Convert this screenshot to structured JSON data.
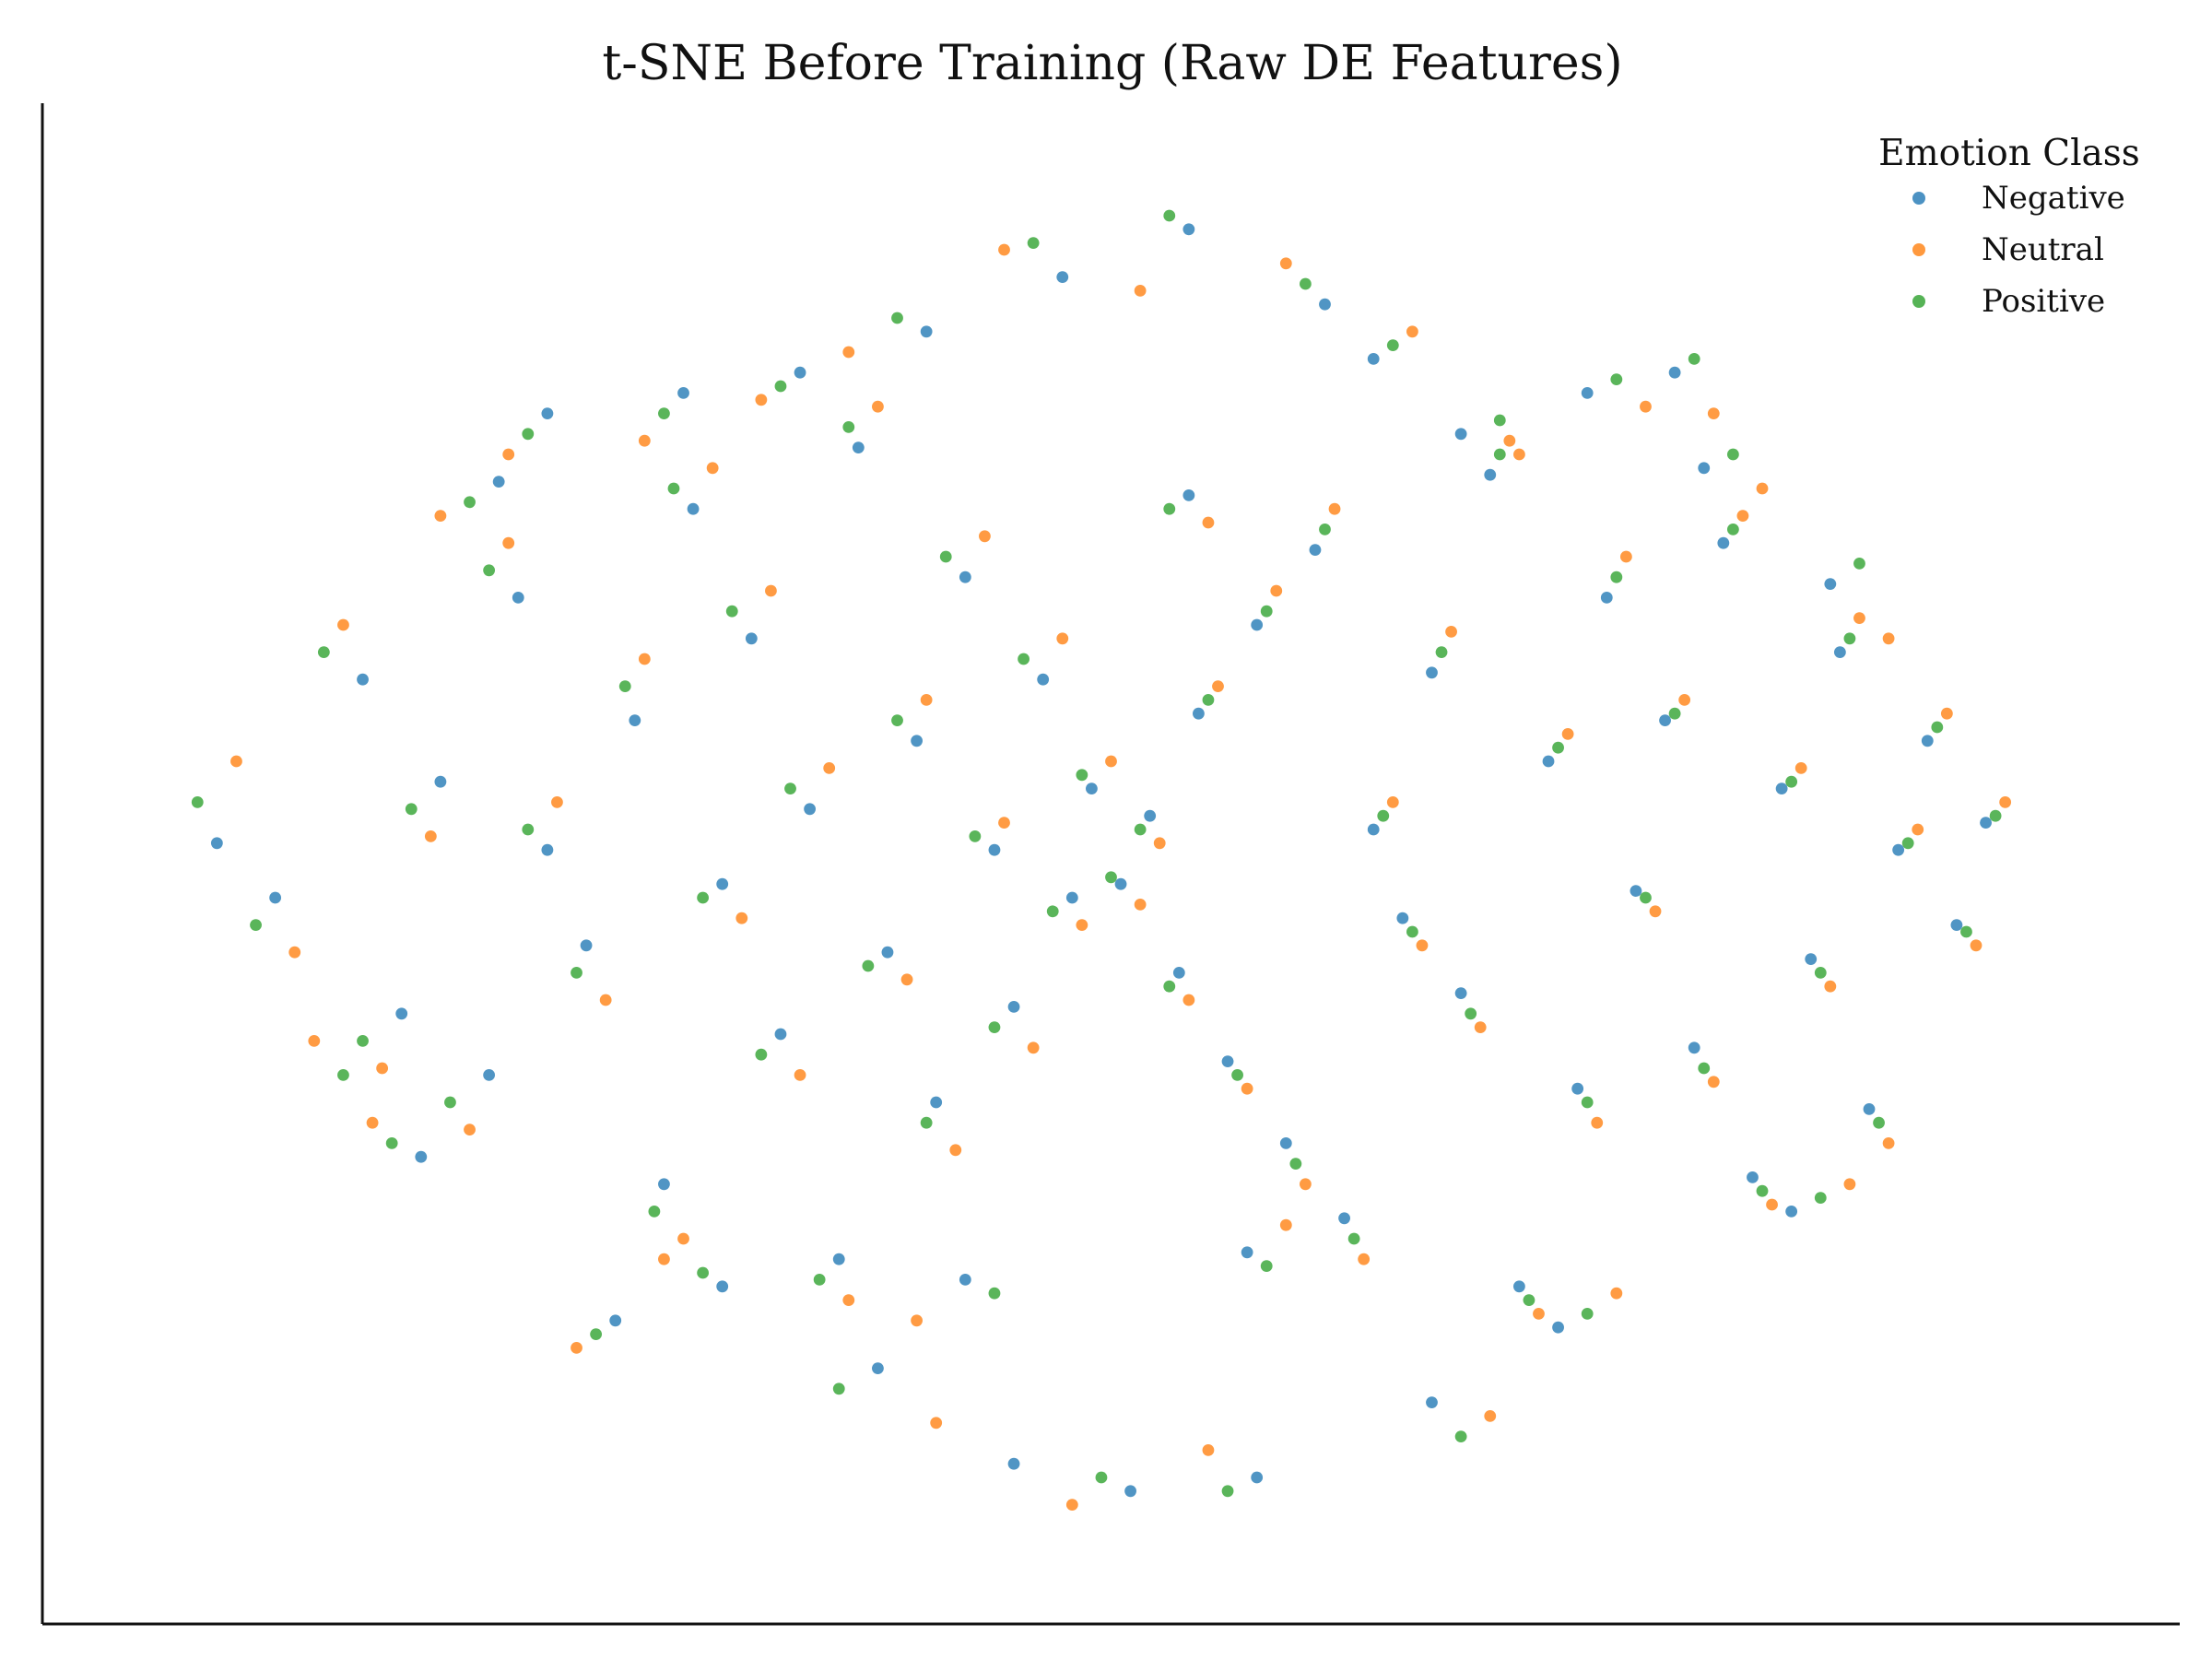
{
  "chart_data": {
    "type": "scatter",
    "title": "t-SNE Before Training (Raw DE Features)",
    "xlabel": "",
    "ylabel": "",
    "grid": false,
    "axes": {
      "left_spine": true,
      "bottom_spine": true,
      "ticks_visible": false
    },
    "xlim": [
      -1,
      1
    ],
    "ylim": [
      -1,
      1
    ],
    "legend": {
      "title": "Emotion Class",
      "position": "top-right",
      "entries": [
        "Negative",
        "Neutral",
        "Positive"
      ]
    },
    "series": [
      {
        "name": "Negative",
        "color": "#1f77b4",
        "points": [
          [
            -0.92,
            0.03
          ],
          [
            -0.86,
            -0.05
          ],
          [
            -0.77,
            0.27
          ],
          [
            -0.73,
            -0.22
          ],
          [
            -0.69,
            0.12
          ],
          [
            -0.64,
            -0.31
          ],
          [
            -0.61,
            0.39
          ],
          [
            -0.58,
            0.02
          ],
          [
            -0.54,
            -0.12
          ],
          [
            -0.49,
            0.21
          ],
          [
            -0.46,
            -0.47
          ],
          [
            -0.43,
            0.52
          ],
          [
            -0.4,
            -0.03
          ],
          [
            -0.37,
            0.33
          ],
          [
            -0.34,
            -0.25
          ],
          [
            -0.31,
            0.08
          ],
          [
            -0.28,
            -0.58
          ],
          [
            -0.26,
            0.61
          ],
          [
            -0.23,
            -0.13
          ],
          [
            -0.2,
            0.18
          ],
          [
            -0.18,
            -0.35
          ],
          [
            -0.15,
            0.42
          ],
          [
            -0.12,
            0.02
          ],
          [
            -0.1,
            -0.21
          ],
          [
            -0.07,
            0.27
          ],
          [
            -0.04,
            -0.05
          ],
          [
            -0.02,
            0.11
          ],
          [
            0.01,
            -0.03
          ],
          [
            0.04,
            0.07
          ],
          [
            0.07,
            -0.16
          ],
          [
            0.09,
            0.22
          ],
          [
            0.12,
            -0.29
          ],
          [
            0.15,
            0.35
          ],
          [
            0.18,
            -0.41
          ],
          [
            0.21,
            0.46
          ],
          [
            0.24,
            -0.52
          ],
          [
            0.27,
            0.05
          ],
          [
            0.3,
            -0.08
          ],
          [
            0.33,
            0.28
          ],
          [
            0.36,
            -0.19
          ],
          [
            0.39,
            0.57
          ],
          [
            0.42,
            -0.62
          ],
          [
            0.45,
            0.15
          ],
          [
            0.48,
            -0.33
          ],
          [
            0.51,
            0.39
          ],
          [
            0.54,
            -0.04
          ],
          [
            0.57,
            0.21
          ],
          [
            0.6,
            -0.27
          ],
          [
            0.63,
            0.47
          ],
          [
            0.66,
            -0.46
          ],
          [
            0.69,
            0.11
          ],
          [
            0.72,
            -0.14
          ],
          [
            0.75,
            0.31
          ],
          [
            0.78,
            -0.36
          ],
          [
            0.81,
            0.02
          ],
          [
            0.84,
            0.18
          ],
          [
            0.87,
            -0.09
          ],
          [
            0.9,
            0.06
          ],
          [
            -0.05,
            0.86
          ],
          [
            0.08,
            0.93
          ],
          [
            0.22,
            0.82
          ],
          [
            -0.19,
            0.78
          ],
          [
            0.33,
            -0.79
          ],
          [
            -0.24,
            -0.74
          ],
          [
            0.49,
            0.69
          ],
          [
            -0.51,
            -0.67
          ],
          [
            0.61,
            0.58
          ],
          [
            -0.63,
            0.56
          ],
          [
            0.7,
            -0.51
          ],
          [
            -0.71,
            -0.43
          ],
          [
            0.02,
            -0.92
          ],
          [
            -0.1,
            -0.88
          ],
          [
            0.15,
            -0.9
          ],
          [
            -0.32,
            0.72
          ],
          [
            0.27,
            0.74
          ],
          [
            0.58,
            0.72
          ],
          [
            -0.58,
            0.66
          ],
          [
            0.08,
            0.54
          ],
          [
            0.14,
            -0.57
          ],
          [
            -0.15,
            -0.61
          ],
          [
            0.36,
            0.63
          ],
          [
            -0.4,
            -0.62
          ],
          [
            0.46,
            -0.68
          ],
          [
            -0.44,
            0.69
          ],
          [
            0.74,
            0.41
          ]
        ]
      },
      {
        "name": "Neutral",
        "color": "#ff7f0e",
        "points": [
          [
            -0.9,
            0.15
          ],
          [
            -0.84,
            -0.13
          ],
          [
            -0.79,
            0.35
          ],
          [
            -0.75,
            -0.3
          ],
          [
            -0.7,
            0.04
          ],
          [
            -0.66,
            -0.39
          ],
          [
            -0.62,
            0.47
          ],
          [
            -0.57,
            0.09
          ],
          [
            -0.52,
            -0.2
          ],
          [
            -0.48,
            0.3
          ],
          [
            -0.44,
            -0.55
          ],
          [
            -0.41,
            0.58
          ],
          [
            -0.38,
            -0.08
          ],
          [
            -0.35,
            0.4
          ],
          [
            -0.32,
            -0.31
          ],
          [
            -0.29,
            0.14
          ],
          [
            -0.27,
            -0.64
          ],
          [
            -0.24,
            0.67
          ],
          [
            -0.21,
            -0.17
          ],
          [
            -0.19,
            0.24
          ],
          [
            -0.16,
            -0.42
          ],
          [
            -0.13,
            0.48
          ],
          [
            -0.11,
            0.06
          ],
          [
            -0.08,
            -0.27
          ],
          [
            -0.05,
            0.33
          ],
          [
            -0.03,
            -0.09
          ],
          [
            0.0,
            0.15
          ],
          [
            0.03,
            -0.06
          ],
          [
            0.05,
            0.03
          ],
          [
            0.08,
            -0.2
          ],
          [
            0.11,
            0.26
          ],
          [
            0.14,
            -0.33
          ],
          [
            0.17,
            0.4
          ],
          [
            0.2,
            -0.47
          ],
          [
            0.23,
            0.52
          ],
          [
            0.26,
            -0.58
          ],
          [
            0.29,
            0.09
          ],
          [
            0.32,
            -0.12
          ],
          [
            0.35,
            0.34
          ],
          [
            0.38,
            -0.24
          ],
          [
            0.41,
            0.62
          ],
          [
            0.44,
            -0.66
          ],
          [
            0.47,
            0.19
          ],
          [
            0.5,
            -0.38
          ],
          [
            0.53,
            0.45
          ],
          [
            0.56,
            -0.07
          ],
          [
            0.59,
            0.24
          ],
          [
            0.62,
            -0.32
          ],
          [
            0.65,
            0.51
          ],
          [
            0.68,
            -0.5
          ],
          [
            0.71,
            0.14
          ],
          [
            0.74,
            -0.18
          ],
          [
            0.77,
            0.36
          ],
          [
            0.8,
            -0.41
          ],
          [
            0.83,
            0.05
          ],
          [
            0.86,
            0.22
          ],
          [
            0.89,
            -0.12
          ],
          [
            0.92,
            0.09
          ],
          [
            -0.11,
            0.9
          ],
          [
            0.03,
            0.84
          ],
          [
            0.18,
            0.88
          ],
          [
            -0.27,
            0.75
          ],
          [
            0.39,
            -0.81
          ],
          [
            -0.18,
            -0.82
          ],
          [
            0.55,
            0.67
          ],
          [
            -0.55,
            -0.71
          ],
          [
            0.67,
            0.55
          ],
          [
            -0.69,
            0.51
          ],
          [
            0.76,
            -0.47
          ],
          [
            -0.76,
            -0.38
          ],
          [
            -0.04,
            -0.94
          ],
          [
            0.1,
            -0.86
          ],
          [
            -0.36,
            0.68
          ],
          [
            0.31,
            0.78
          ],
          [
            0.62,
            0.66
          ],
          [
            -0.62,
            0.6
          ],
          [
            0.1,
            0.5
          ],
          [
            0.18,
            -0.53
          ],
          [
            -0.2,
            -0.67
          ],
          [
            0.42,
            0.6
          ],
          [
            -0.46,
            -0.58
          ],
          [
            0.52,
            -0.63
          ],
          [
            -0.48,
            0.62
          ],
          [
            0.8,
            0.33
          ],
          [
            -0.82,
            -0.26
          ]
        ]
      },
      {
        "name": "Positive",
        "color": "#2ca02c",
        "points": [
          [
            -0.94,
            0.09
          ],
          [
            -0.88,
            -0.09
          ],
          [
            -0.81,
            0.31
          ],
          [
            -0.77,
            -0.26
          ],
          [
            -0.72,
            0.08
          ],
          [
            -0.68,
            -0.35
          ],
          [
            -0.64,
            0.43
          ],
          [
            -0.6,
            0.05
          ],
          [
            -0.55,
            -0.16
          ],
          [
            -0.5,
            0.26
          ],
          [
            -0.47,
            -0.51
          ],
          [
            -0.45,
            0.55
          ],
          [
            -0.42,
            -0.05
          ],
          [
            -0.39,
            0.37
          ],
          [
            -0.36,
            -0.28
          ],
          [
            -0.33,
            0.11
          ],
          [
            -0.3,
            -0.61
          ],
          [
            -0.27,
            0.64
          ],
          [
            -0.25,
            -0.15
          ],
          [
            -0.22,
            0.21
          ],
          [
            -0.19,
            -0.38
          ],
          [
            -0.17,
            0.45
          ],
          [
            -0.14,
            0.04
          ],
          [
            -0.12,
            -0.24
          ],
          [
            -0.09,
            0.3
          ],
          [
            -0.06,
            -0.07
          ],
          [
            -0.03,
            0.13
          ],
          [
            0.0,
            -0.02
          ],
          [
            0.03,
            0.05
          ],
          [
            0.06,
            -0.18
          ],
          [
            0.1,
            0.24
          ],
          [
            0.13,
            -0.31
          ],
          [
            0.16,
            0.37
          ],
          [
            0.19,
            -0.44
          ],
          [
            0.22,
            0.49
          ],
          [
            0.25,
            -0.55
          ],
          [
            0.28,
            0.07
          ],
          [
            0.31,
            -0.1
          ],
          [
            0.34,
            0.31
          ],
          [
            0.37,
            -0.22
          ],
          [
            0.4,
            0.6
          ],
          [
            0.43,
            -0.64
          ],
          [
            0.46,
            0.17
          ],
          [
            0.49,
            -0.35
          ],
          [
            0.52,
            0.42
          ],
          [
            0.55,
            -0.05
          ],
          [
            0.58,
            0.22
          ],
          [
            0.61,
            -0.3
          ],
          [
            0.64,
            0.49
          ],
          [
            0.67,
            -0.48
          ],
          [
            0.7,
            0.12
          ],
          [
            0.73,
            -0.16
          ],
          [
            0.76,
            0.33
          ],
          [
            0.79,
            -0.38
          ],
          [
            0.82,
            0.03
          ],
          [
            0.85,
            0.2
          ],
          [
            0.88,
            -0.1
          ],
          [
            0.91,
            0.07
          ],
          [
            -0.08,
            0.91
          ],
          [
            0.06,
            0.95
          ],
          [
            0.2,
            0.85
          ],
          [
            -0.22,
            0.8
          ],
          [
            0.36,
            -0.84
          ],
          [
            -0.28,
            -0.77
          ],
          [
            0.52,
            0.71
          ],
          [
            -0.53,
            -0.69
          ],
          [
            0.64,
            0.6
          ],
          [
            -0.66,
            0.53
          ],
          [
            0.73,
            -0.49
          ],
          [
            -0.74,
            -0.41
          ],
          [
            -0.01,
            -0.9
          ],
          [
            0.12,
            -0.92
          ],
          [
            -0.34,
            0.7
          ],
          [
            0.29,
            0.76
          ],
          [
            0.6,
            0.74
          ],
          [
            -0.6,
            0.63
          ],
          [
            0.06,
            0.52
          ],
          [
            0.16,
            -0.59
          ],
          [
            -0.12,
            -0.63
          ],
          [
            0.4,
            0.65
          ],
          [
            -0.42,
            -0.6
          ],
          [
            0.49,
            -0.66
          ],
          [
            -0.46,
            0.66
          ],
          [
            0.77,
            0.44
          ],
          [
            -0.79,
            -0.31
          ]
        ]
      }
    ]
  }
}
